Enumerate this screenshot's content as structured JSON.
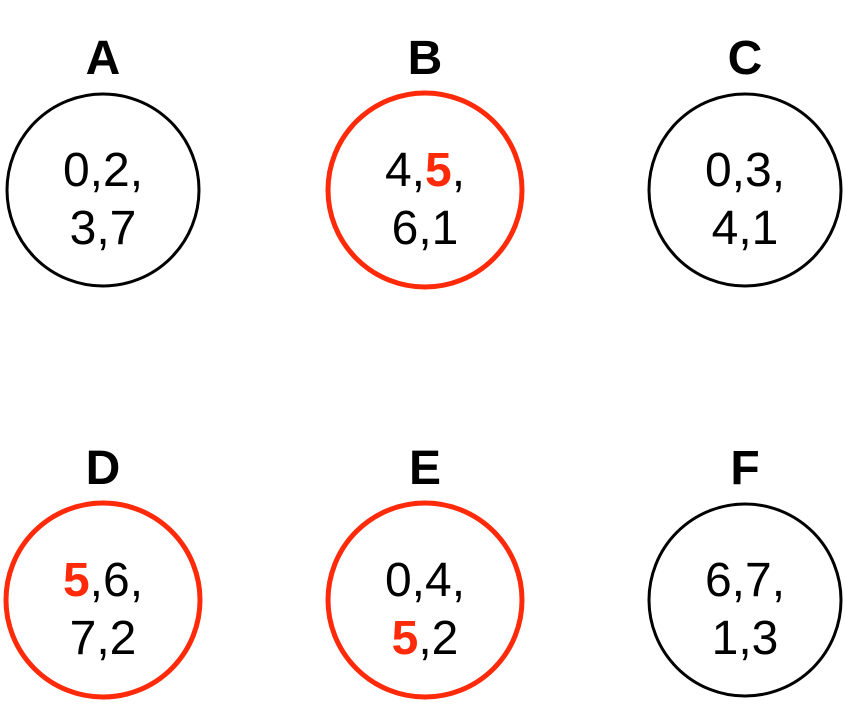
{
  "nodes": [
    {
      "label": "A",
      "color": "#000000",
      "lines": [
        [
          {
            "text": "0,2,"
          }
        ],
        [
          {
            "text": "3,7"
          }
        ]
      ]
    },
    {
      "label": "B",
      "color": "#ff2a0a",
      "lines": [
        [
          {
            "text": "4,"
          },
          {
            "text": "5",
            "emphasis": true
          },
          {
            "text": ","
          }
        ],
        [
          {
            "text": "6,1"
          }
        ]
      ]
    },
    {
      "label": "C",
      "color": "#000000",
      "lines": [
        [
          {
            "text": "0,3,"
          }
        ],
        [
          {
            "text": "4,1"
          }
        ]
      ]
    },
    {
      "label": "D",
      "color": "#ff2a0a",
      "lines": [
        [
          {
            "text": "5",
            "emphasis": true
          },
          {
            "text": ",6,"
          }
        ],
        [
          {
            "text": "7,2"
          }
        ]
      ]
    },
    {
      "label": "E",
      "color": "#ff2a0a",
      "lines": [
        [
          {
            "text": "0,4,"
          }
        ],
        [
          {
            "text": "5",
            "emphasis": true
          },
          {
            "text": ",2"
          }
        ]
      ]
    },
    {
      "label": "F",
      "color": "#000000",
      "lines": [
        [
          {
            "text": "6,7,"
          }
        ],
        [
          {
            "text": "1,3"
          }
        ]
      ]
    }
  ],
  "emphasis_color": "#ff2a0a"
}
